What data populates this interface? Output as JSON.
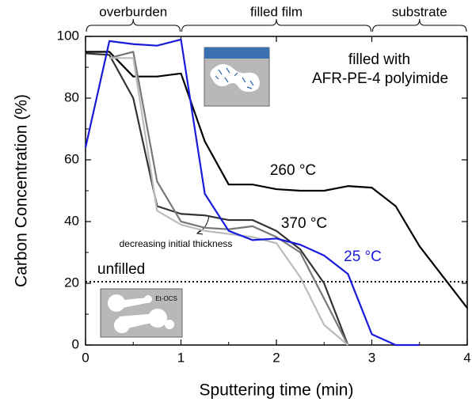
{
  "chart_data": {
    "type": "line",
    "xlabel": "Sputtering time (min)",
    "ylabel": "Carbon Concentration (%)",
    "xlim": [
      0,
      4
    ],
    "ylim": [
      0,
      100
    ],
    "xticks": [
      0,
      1,
      2,
      3,
      4
    ],
    "yticks": [
      0,
      20,
      40,
      60,
      80,
      100
    ],
    "series": [
      {
        "name": "260 °C",
        "color": "#000000",
        "x": [
          0,
          0.25,
          0.5,
          0.75,
          1,
          1.25,
          1.5,
          1.75,
          2,
          2.25,
          2.5,
          2.75,
          3,
          3.25,
          3.5,
          3.75,
          4
        ],
        "values": [
          95,
          95,
          87,
          87,
          88,
          66,
          52,
          52,
          50.5,
          50,
          50,
          51.5,
          51,
          45,
          32,
          22,
          12
        ]
      },
      {
        "name": "370 °C",
        "color": "#333333",
        "x": [
          0,
          0.25,
          0.5,
          0.75,
          1,
          1.25,
          1.5,
          1.75,
          2,
          2.25,
          2.5,
          2.75
        ],
        "values": [
          94.5,
          94,
          80,
          45,
          42.5,
          42,
          40.5,
          40.5,
          37,
          31,
          20,
          0
        ]
      },
      {
        "color": "#777777",
        "x": [
          0.25,
          0.5,
          0.75,
          1,
          1.25,
          1.5,
          1.75,
          2,
          2.25,
          2.5,
          2.75
        ],
        "values": [
          93,
          95,
          53,
          40,
          38,
          37.5,
          38.5,
          35,
          30,
          15,
          0
        ]
      },
      {
        "color": "#bbbbbb",
        "x": [
          0.25,
          0.5,
          0.75,
          1,
          1.25,
          1.5,
          1.75,
          2,
          2.25,
          2.5,
          2.75
        ],
        "values": [
          93,
          93,
          43.5,
          39,
          37,
          36,
          35,
          33,
          22,
          6.5,
          0
        ]
      },
      {
        "name": "25 °C",
        "color": "#1a1adb",
        "x": [
          0,
          0.25,
          0.5,
          0.75,
          1,
          1.25,
          1.5,
          1.75,
          2,
          2.25,
          2.5,
          2.75,
          3,
          3.25,
          3.5
        ],
        "values": [
          64,
          98.5,
          97.5,
          97,
          99,
          49,
          37,
          34,
          34.5,
          32.5,
          29,
          23,
          3.5,
          0,
          0
        ]
      }
    ],
    "reference_line": {
      "label": "unfilled",
      "value": 20.5
    },
    "regions": [
      {
        "label": "overburden",
        "range": [
          0,
          1
        ]
      },
      {
        "label": "filled film",
        "range": [
          1,
          3
        ]
      },
      {
        "label": "substrate",
        "range": [
          3,
          4
        ]
      }
    ],
    "annotations": [
      "filled with",
      "AFR-PE-4 polyimide",
      "decreasing initial thickness",
      "Et-OCS"
    ]
  }
}
